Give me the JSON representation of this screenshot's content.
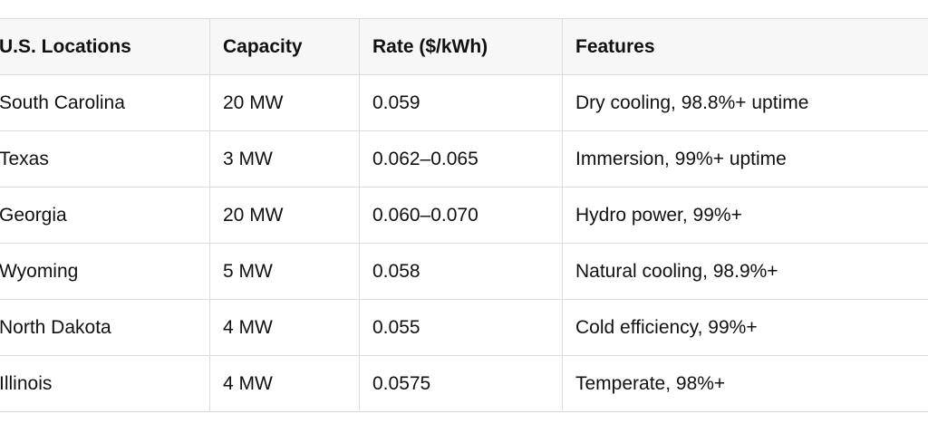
{
  "table": {
    "header": [
      "U.S. Locations",
      "Capacity",
      "Rate ($/kWh)",
      "Features"
    ],
    "rows": [
      [
        "South Carolina",
        "20 MW",
        "0.059",
        "Dry cooling, 98.8%+ uptime"
      ],
      [
        "Texas",
        "3 MW",
        "0.062–0.065",
        "Immersion, 99%+ uptime"
      ],
      [
        "Georgia",
        "20 MW",
        "0.060–0.070",
        "Hydro power, 99%+"
      ],
      [
        "Wyoming",
        "5 MW",
        "0.058",
        "Natural cooling, 98.9%+"
      ],
      [
        "North Dakota",
        "4 MW",
        "0.055",
        "Cold efficiency, 99%+"
      ],
      [
        "Illinois",
        "4 MW",
        "0.0575",
        "Temperate, 98%+"
      ]
    ]
  }
}
